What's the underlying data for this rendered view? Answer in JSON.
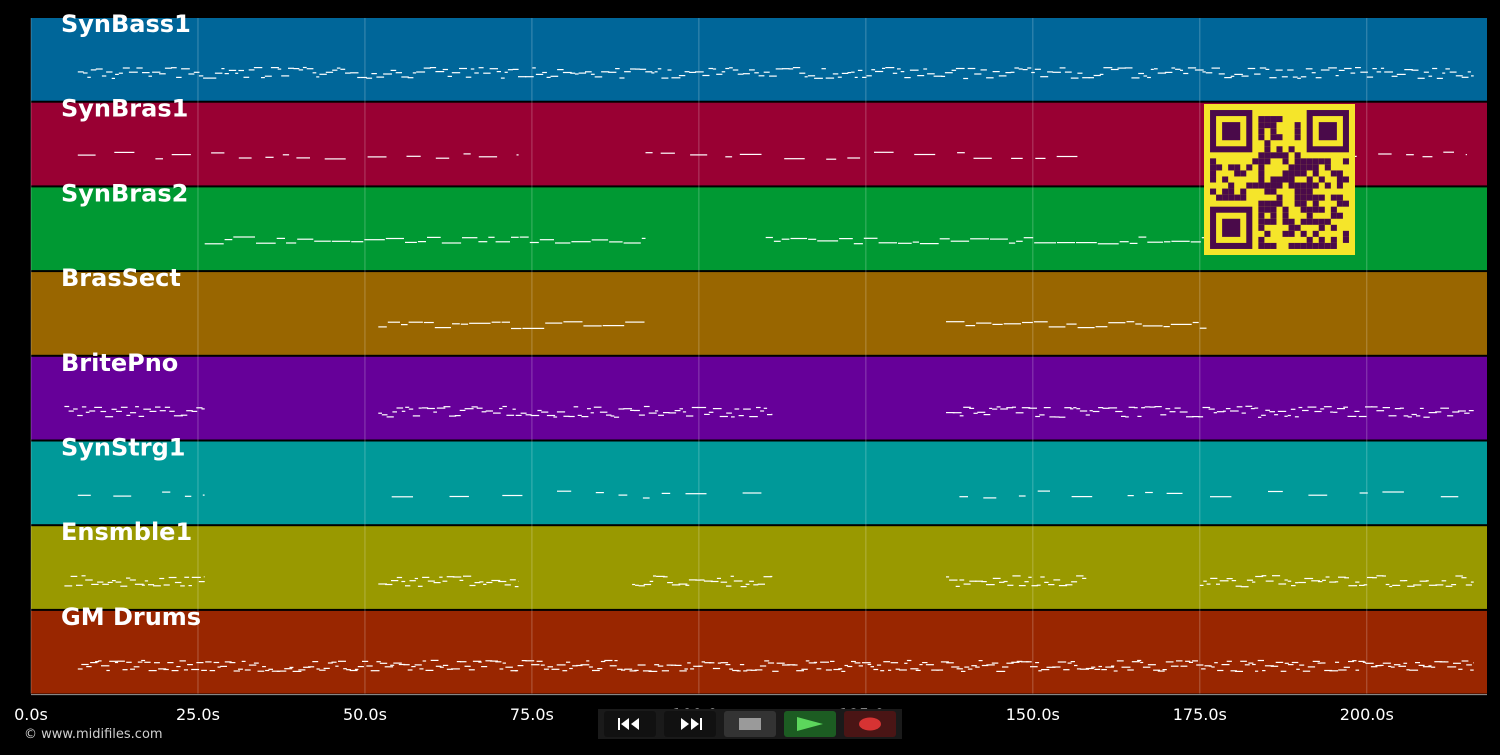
{
  "copyright": "© www.midifiles.com",
  "colors": {
    "background": "#000000",
    "grid": "#ffffff",
    "notes": "#ffffff",
    "qr_background": "#f5e52a",
    "qr_foreground": "#4a0a4a"
  },
  "timeline": {
    "unit": "s",
    "duration": 218,
    "tick_values": [
      0,
      25,
      50,
      75,
      100,
      125,
      150,
      175,
      200
    ],
    "tick_labels": [
      "0.0s",
      "25.0s",
      "50.0s",
      "75.0s",
      "100.0s",
      "125.0s",
      "150.0s",
      "175.0s",
      "200.0s"
    ]
  },
  "tracks": [
    {
      "name": "SynBass1",
      "color": "#006699",
      "density": 2.2,
      "rows": 3,
      "segments": [
        [
          7,
          216
        ]
      ]
    },
    {
      "name": "SynBras1",
      "color": "#990033",
      "density": 0.8,
      "rows": 2,
      "segments": [
        [
          7,
          73
        ],
        [
          92,
          158
        ],
        [
          177,
          215
        ]
      ]
    },
    {
      "name": "SynBras2",
      "color": "#009933",
      "density": 1.6,
      "rows": 2,
      "segments": [
        [
          26,
          92
        ],
        [
          110,
          176
        ]
      ]
    },
    {
      "name": "BrasSect",
      "color": "#996600",
      "density": 1.6,
      "rows": 2,
      "segments": [
        [
          52,
          92
        ],
        [
          137,
          176
        ]
      ]
    },
    {
      "name": "BritePno",
      "color": "#660099",
      "density": 2.4,
      "rows": 3,
      "segments": [
        [
          5,
          26
        ],
        [
          52,
          111
        ],
        [
          137,
          216
        ]
      ]
    },
    {
      "name": "SynStrg1",
      "color": "#009999",
      "density": 0.6,
      "rows": 2,
      "segments": [
        [
          7,
          26
        ],
        [
          54,
          111
        ],
        [
          139,
          215
        ]
      ]
    },
    {
      "name": "Ensmble1",
      "color": "#999900",
      "density": 2.4,
      "rows": 3,
      "segments": [
        [
          5,
          26
        ],
        [
          52,
          73
        ],
        [
          90,
          111
        ],
        [
          137,
          158
        ],
        [
          175,
          216
        ]
      ]
    },
    {
      "name": "GM Drums",
      "color": "#992600",
      "density": 3.0,
      "rows": 3,
      "segments": [
        [
          7,
          216
        ]
      ]
    }
  ],
  "transport": [
    {
      "name": "rewind-button",
      "icon": "rewind-icon",
      "bg": "#111111"
    },
    {
      "name": "fast-forward-button",
      "icon": "fast-forward-icon",
      "bg": "#111111"
    },
    {
      "name": "stop-button",
      "icon": "stop-icon",
      "bg": "#333333"
    },
    {
      "name": "play-button",
      "icon": "play-icon",
      "bg": "#1c5c22"
    },
    {
      "name": "record-button",
      "icon": "record-icon",
      "bg": "#4a1515"
    }
  ]
}
